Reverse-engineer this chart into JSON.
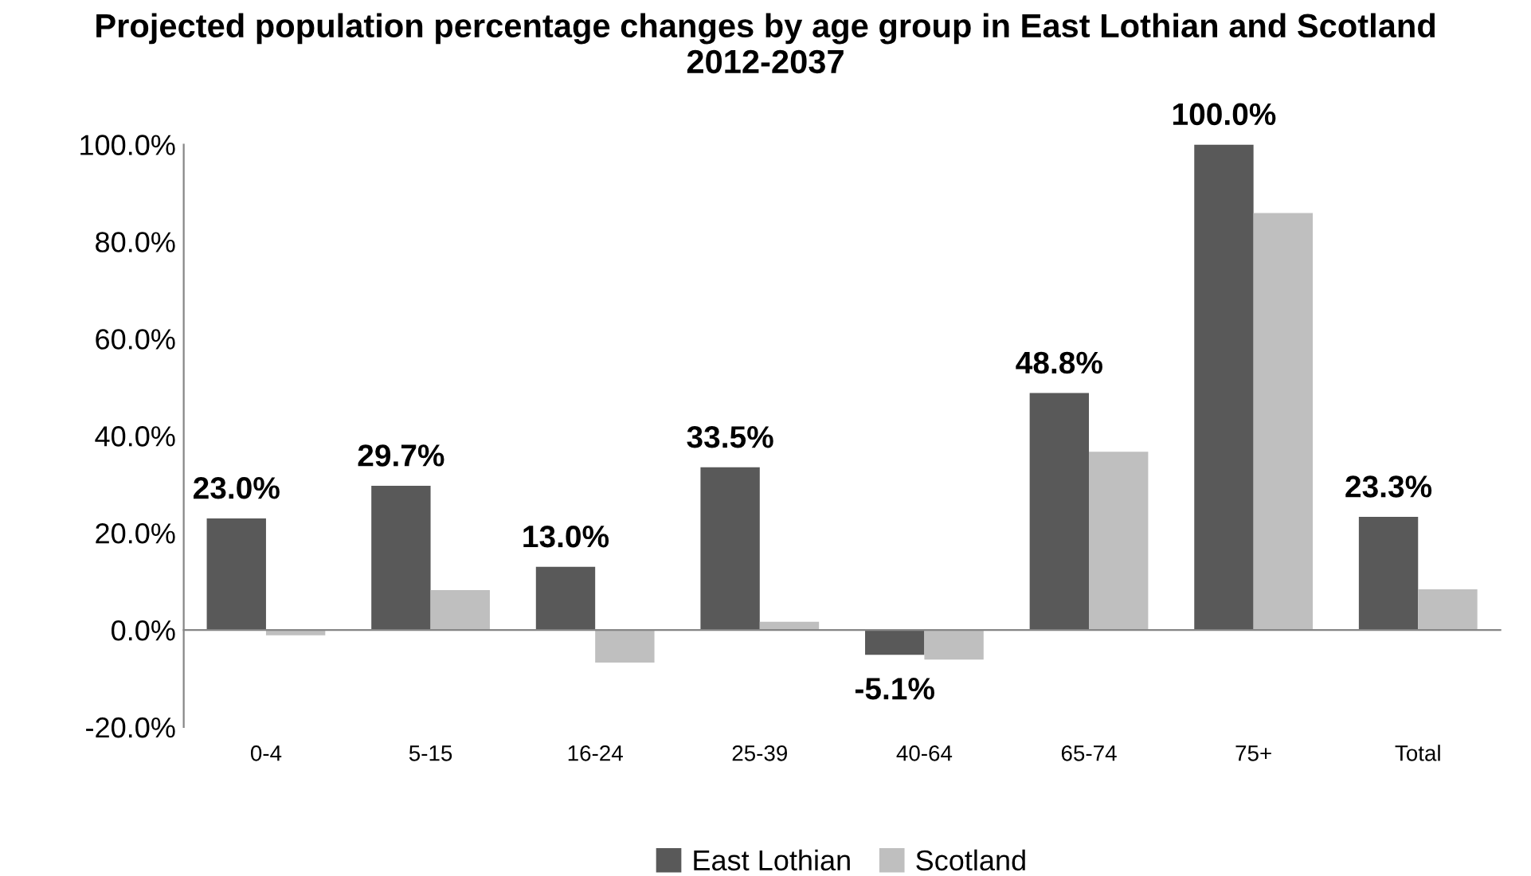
{
  "chart_data": {
    "type": "bar",
    "title": "Projected population percentage changes by age group in East Lothian and Scotland 2012-2037",
    "categories": [
      "0-4",
      "5-15",
      "16-24",
      "25-39",
      "40-64",
      "65-74",
      "75+",
      "Total"
    ],
    "series": [
      {
        "name": "East Lothian",
        "color": "#595959",
        "values": [
          23.0,
          29.7,
          13.0,
          33.5,
          -5.1,
          48.8,
          100.0,
          23.3
        ],
        "value_labels": [
          "23.0%",
          "29.7%",
          "13.0%",
          "33.5%",
          "-5.1%",
          "48.8%",
          "100.0%",
          "23.3%"
        ]
      },
      {
        "name": "Scotland",
        "color": "#bfbfbf",
        "values": [
          -1.1,
          8.2,
          -6.7,
          1.7,
          -6.1,
          36.7,
          85.9,
          8.4
        ]
      }
    ],
    "ylim": [
      -20,
      100
    ],
    "yticks": [
      {
        "value": -20,
        "label": "-20.0%"
      },
      {
        "value": 0,
        "label": "0.0%"
      },
      {
        "value": 20,
        "label": "20.0%"
      },
      {
        "value": 40,
        "label": "40.0%"
      },
      {
        "value": 60,
        "label": "60.0%"
      },
      {
        "value": 80,
        "label": "80.0%"
      },
      {
        "value": 100,
        "label": "100.0%"
      }
    ],
    "legend": "bottom"
  }
}
